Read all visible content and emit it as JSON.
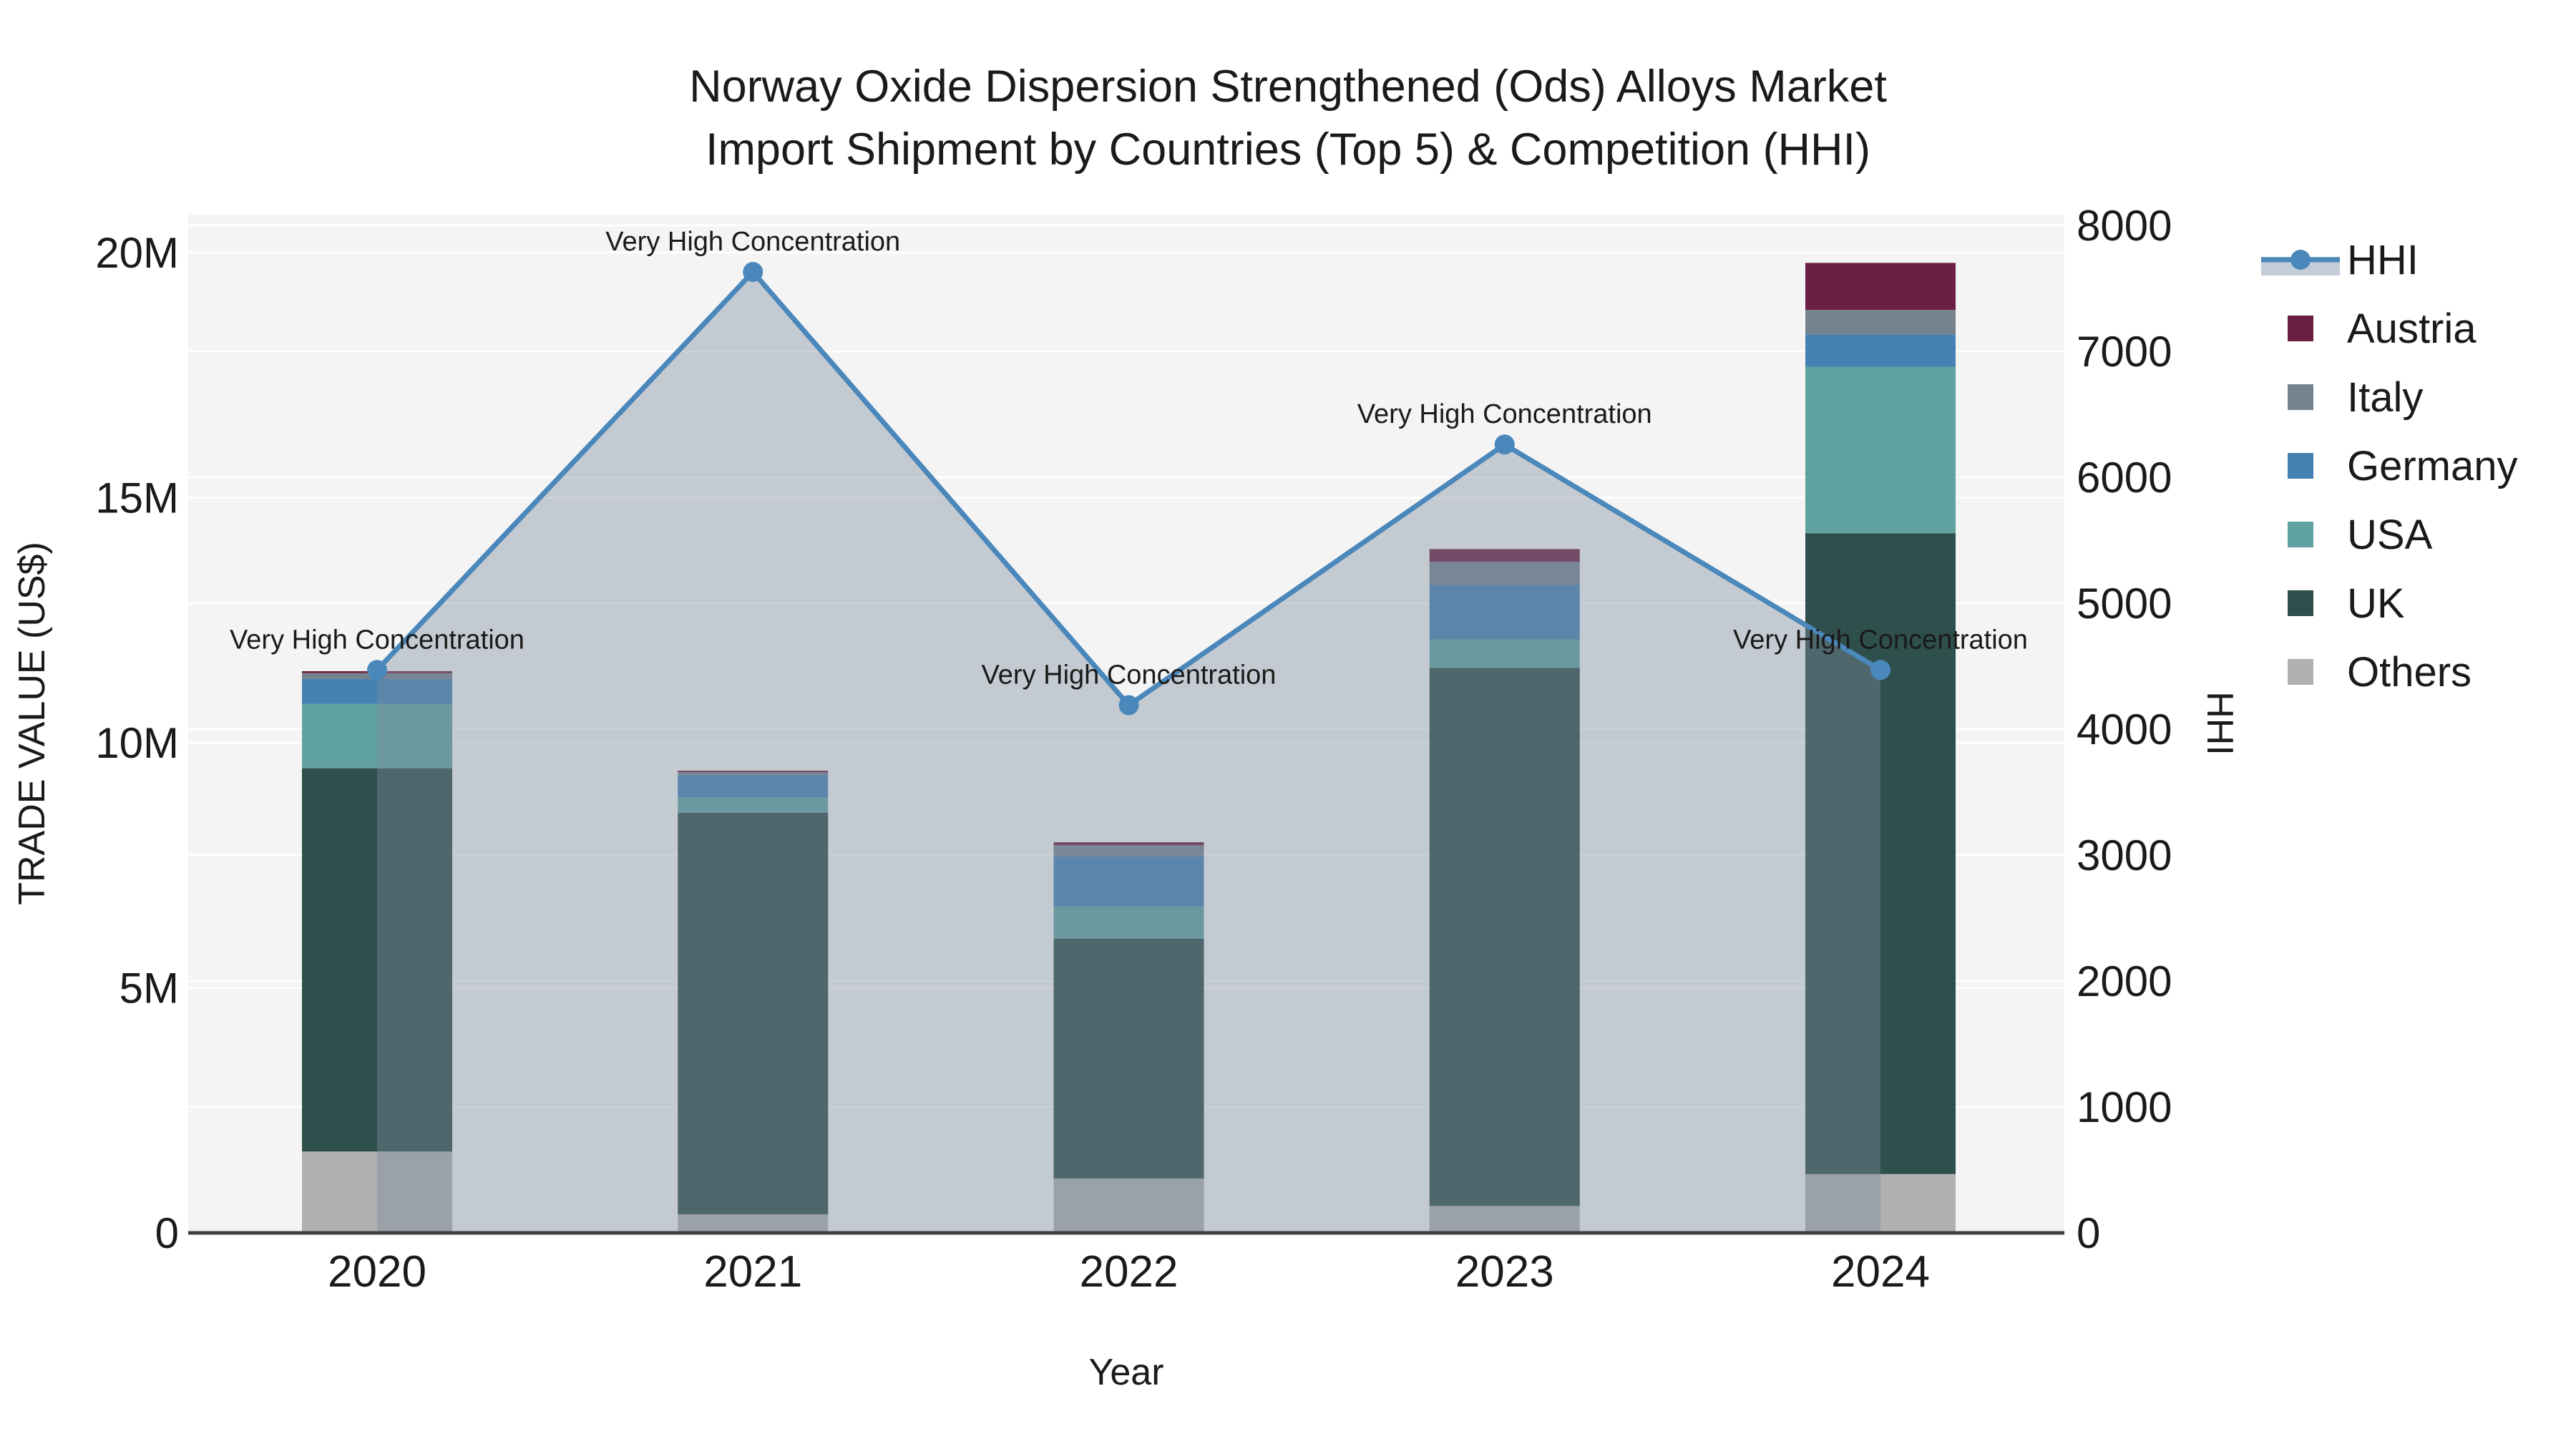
{
  "title": {
    "line1": "Norway Oxide Dispersion Strengthened (Ods) Alloys Market",
    "line2": "Import Shipment by Countries (Top 5) & Competition (HHI)"
  },
  "axes": {
    "x": {
      "title": "Year",
      "ticks": [
        "2020",
        "2021",
        "2022",
        "2023",
        "2024"
      ]
    },
    "left": {
      "title": "TRADE VALUE (US$)",
      "ticks": [
        "0",
        "5M",
        "10M",
        "15M",
        "20M"
      ],
      "tick_values_musd": [
        0,
        5,
        10,
        15,
        20
      ],
      "range_musd": [
        0,
        20.8
      ]
    },
    "right": {
      "title": "HHI",
      "ticks": [
        "0",
        "1000",
        "2000",
        "3000",
        "4000",
        "5000",
        "6000",
        "7000",
        "8000"
      ],
      "tick_values": [
        0,
        1000,
        2000,
        3000,
        4000,
        5000,
        6000,
        7000,
        8000
      ],
      "range": [
        0,
        8085
      ]
    }
  },
  "annotations": [
    {
      "text": "Very High Concentration"
    },
    {
      "text": "Very High Concentration"
    },
    {
      "text": "Very High Concentration"
    },
    {
      "text": "Very High Concentration"
    },
    {
      "text": "Very High Concentration"
    }
  ],
  "legend": {
    "items": [
      {
        "label": "HHI",
        "swatch": "line",
        "color": "#4a87ba"
      },
      {
        "label": "Austria",
        "swatch": "#6b1f42",
        "color": "#6b1f42"
      },
      {
        "label": "Italy",
        "swatch": "#75838f",
        "color": "#75838f"
      },
      {
        "label": "Germany",
        "swatch": "#4681b4",
        "color": "#4681b4"
      },
      {
        "label": "USA",
        "swatch": "#60a2a0",
        "color": "#60a2a0"
      },
      {
        "label": "UK",
        "swatch": "#2e4f4b",
        "color": "#2e4f4b"
      },
      {
        "label": "Others",
        "swatch": "#b0b0b0",
        "color": "#b0b0b0"
      }
    ]
  },
  "colors": {
    "figure_bg": "#ffffff",
    "plot_bg": "#f4f4f4",
    "gridline": "#ffffff",
    "x_axis_line": "#3f3f3f",
    "hhi_line": "#4a87ba",
    "hhi_area_fill": "rgba(126,140,158,0.40)",
    "text": "#1a1a1a"
  },
  "chart_data": {
    "type": "bar",
    "subtype": "stacked-bars-with-line-area-overlay",
    "title": "Norway Oxide Dispersion Strengthened (Ods) Alloys Market Import Shipment by Countries (Top 5) & Competition (HHI)",
    "xlabel": "Year",
    "ylabel_left": "TRADE VALUE (US$)",
    "ylabel_right": "HHI",
    "categories": [
      "2020",
      "2021",
      "2022",
      "2023",
      "2024"
    ],
    "bar_unit": "US$ millions",
    "stack_order_bottom_to_top": [
      "Others",
      "UK",
      "USA",
      "Germany",
      "Italy",
      "Austria"
    ],
    "series": [
      {
        "name": "Others",
        "color": "#b0b0b0",
        "values_musd": [
          1.66,
          0.38,
          1.11,
          0.55,
          1.2
        ]
      },
      {
        "name": "UK",
        "color": "#2e4f4b",
        "values_musd": [
          7.82,
          8.19,
          4.89,
          10.98,
          13.07
        ]
      },
      {
        "name": "USA",
        "color": "#60a2a0",
        "values_musd": [
          1.31,
          0.32,
          0.66,
          0.58,
          3.4
        ]
      },
      {
        "name": "Germany",
        "color": "#4681b4",
        "values_musd": [
          0.51,
          0.45,
          1.02,
          1.11,
          0.66
        ]
      },
      {
        "name": "Italy",
        "color": "#75838f",
        "values_musd": [
          0.12,
          0.06,
          0.23,
          0.47,
          0.5
        ]
      },
      {
        "name": "Austria",
        "color": "#6b1f42",
        "values_musd": [
          0.04,
          0.03,
          0.06,
          0.26,
          0.96
        ]
      }
    ],
    "bar_totals_musd": [
      11.46,
      9.43,
      7.97,
      13.95,
      19.79
    ],
    "line_series": {
      "name": "HHI",
      "color": "#4a87ba",
      "area_fill": "rgba(126,140,158,0.40)",
      "values": [
        4470,
        7630,
        4190,
        6260,
        4470
      ],
      "point_labels": [
        "Very High Concentration",
        "Very High Concentration",
        "Very High Concentration",
        "Very High Concentration",
        "Very High Concentration"
      ]
    },
    "ylim_left_musd": [
      0,
      20.8
    ],
    "ylim_right": [
      0,
      8085
    ],
    "grid": true,
    "legend_position": "right"
  }
}
